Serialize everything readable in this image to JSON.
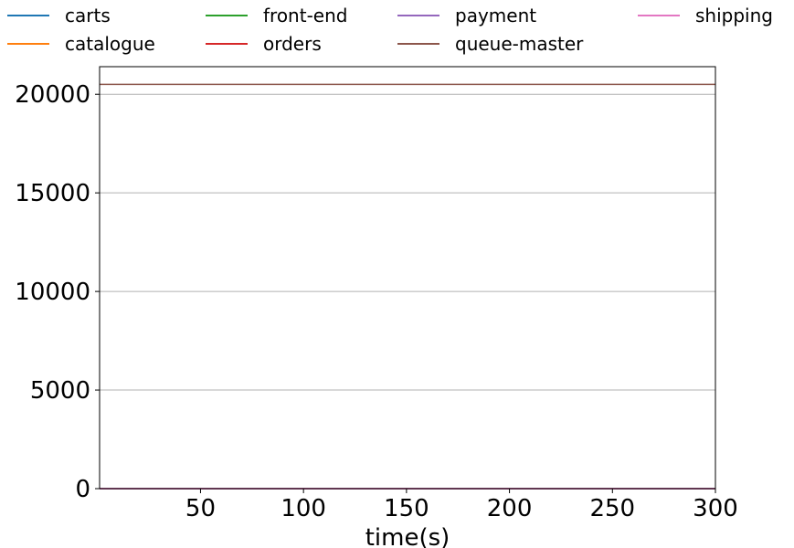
{
  "chart_data": {
    "type": "line",
    "title": "",
    "xlabel": "time(s)",
    "ylabel": "",
    "xlim": [
      1,
      300
    ],
    "ylim": [
      0,
      21400
    ],
    "x_ticks": [
      50,
      100,
      150,
      200,
      250,
      300
    ],
    "y_ticks": [
      0,
      5000,
      10000,
      15000,
      20000
    ],
    "grid": "y-major",
    "legend_position": "top",
    "series": [
      {
        "name": "carts",
        "color": "#1f77b4",
        "x": [
          1,
          300
        ],
        "y": [
          0,
          0
        ]
      },
      {
        "name": "catalogue",
        "color": "#ff7f0e",
        "x": [
          1,
          300
        ],
        "y": [
          0,
          0
        ]
      },
      {
        "name": "front-end",
        "color": "#2ca02c",
        "x": [
          1,
          300
        ],
        "y": [
          0,
          0
        ]
      },
      {
        "name": "orders",
        "color": "#d62728",
        "x": [
          1,
          300
        ],
        "y": [
          0,
          0
        ]
      },
      {
        "name": "payment",
        "color": "#9467bd",
        "x": [
          1,
          300
        ],
        "y": [
          0,
          0
        ]
      },
      {
        "name": "queue-master",
        "color": "#8c564b",
        "x": [
          1,
          300
        ],
        "y": [
          20500,
          20500
        ]
      },
      {
        "name": "shipping",
        "color": "#e377c2",
        "x": [
          1,
          300
        ],
        "y": [
          0,
          0
        ]
      }
    ]
  }
}
